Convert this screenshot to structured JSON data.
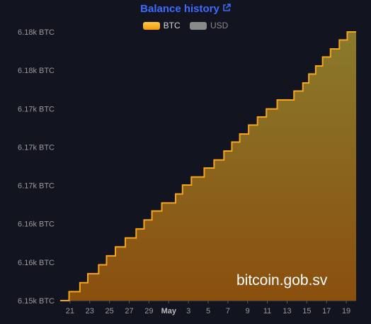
{
  "chart_data": {
    "type": "area",
    "title": "Balance history",
    "legend": {
      "placement": "top-center",
      "items": [
        {
          "name": "BTC",
          "color": "#f7a51a",
          "active": true
        },
        {
          "name": "USD",
          "color": "#8a8a8a",
          "active": false
        }
      ]
    },
    "y_tick_labels": [
      "6.18k BTC",
      "6.18k BTC",
      "6.17k BTC",
      "6.17k BTC",
      "6.17k BTC",
      "6.16k BTC",
      "6.16k BTC",
      "6.15k BTC"
    ],
    "ylim": [
      6155,
      6185
    ],
    "x_tick_labels": [
      "21",
      "23",
      "25",
      "27",
      "29",
      "May",
      "3",
      "5",
      "7",
      "9",
      "11",
      "13",
      "15",
      "17",
      "19"
    ],
    "x_tick_positions": [
      1,
      3,
      5,
      7,
      9,
      11,
      13,
      15,
      17,
      19,
      21,
      23,
      25,
      27,
      29
    ],
    "xlim": [
      0,
      30
    ],
    "x": [
      0,
      0.9,
      2.0,
      2.8,
      3.9,
      4.7,
      5.6,
      6.6,
      7.7,
      8.5,
      9.3,
      10.3,
      11.7,
      12.4,
      13.3,
      14.6,
      15.6,
      16.6,
      17.4,
      18.2,
      19.1,
      20.0,
      20.9,
      22.0,
      23.7,
      24.6,
      25.2,
      25.9,
      26.6,
      27.4,
      28.3,
      29.1,
      30.0
    ],
    "series": [
      {
        "name": "BTC",
        "color": "#f7a51a",
        "values": [
          6155.0,
          6156.0,
          6157.0,
          6158.0,
          6159.0,
          6160.0,
          6161.0,
          6162.0,
          6163.0,
          6164.0,
          6165.0,
          6165.9,
          6166.9,
          6167.9,
          6168.8,
          6169.8,
          6170.7,
          6171.7,
          6172.7,
          6173.6,
          6174.6,
          6175.5,
          6176.4,
          6177.4,
          6178.4,
          6179.3,
          6180.3,
          6181.2,
          6182.2,
          6183.1,
          6184.1,
          6185.0,
          6185.0
        ]
      }
    ]
  },
  "watermark": "bitcoin.gob.sv"
}
